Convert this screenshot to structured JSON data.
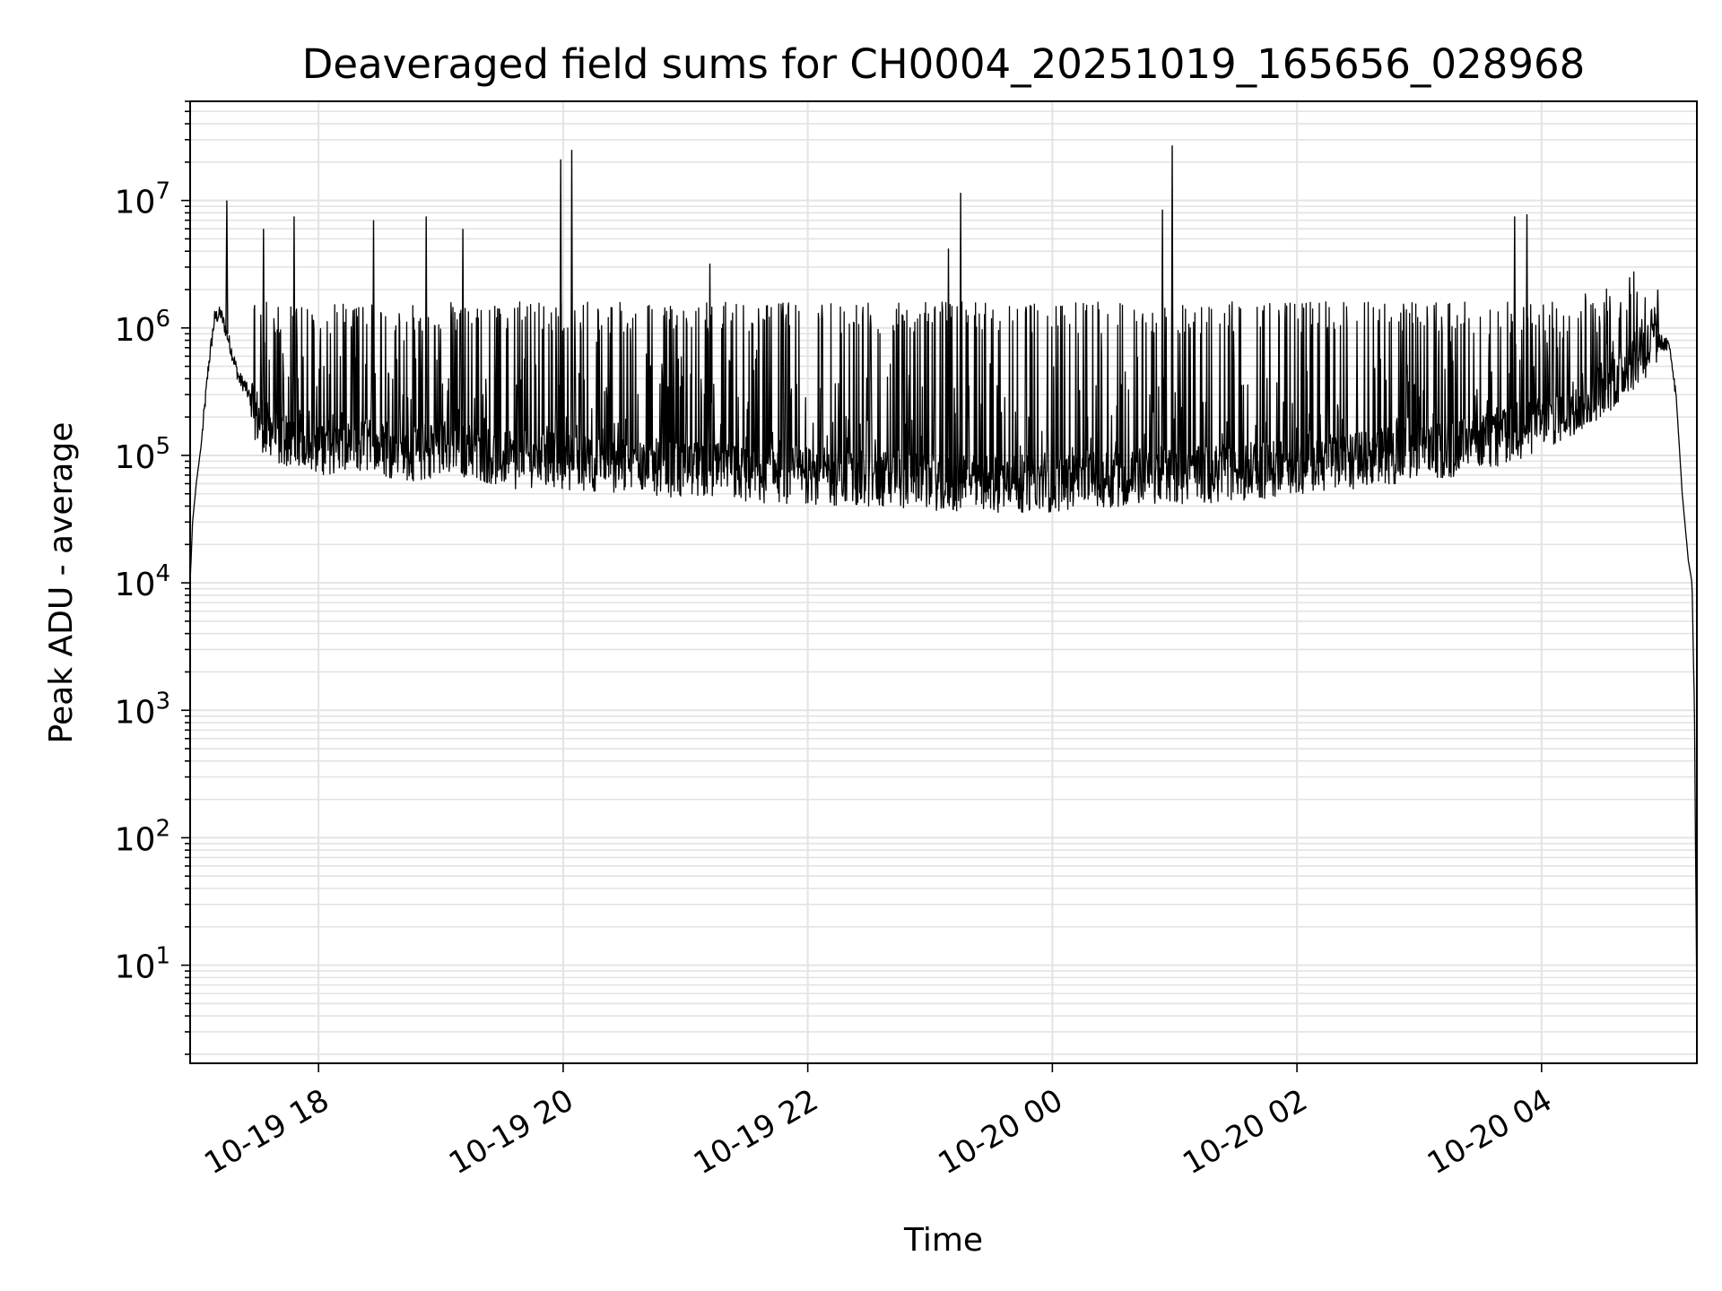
{
  "chart_data": {
    "type": "line",
    "title": "Deaveraged field sums for CH0004_20251019_165656_028968",
    "xlabel": "Time",
    "ylabel": "Peak ADU - average",
    "yscale": "log",
    "ylim": [
      1.7,
      60000000
    ],
    "xlim_hours": [
      -1.05,
      11.27
    ],
    "grid": true,
    "x_ticks": [
      {
        "label": "10-19 18",
        "hours": 0
      },
      {
        "label": "10-19 20",
        "hours": 2
      },
      {
        "label": "10-19 22",
        "hours": 4
      },
      {
        "label": "10-20 00",
        "hours": 6
      },
      {
        "label": "10-20 02",
        "hours": 8
      },
      {
        "label": "10-20 04",
        "hours": 10
      }
    ],
    "y_ticks": [
      {
        "base": "10",
        "exp": "1",
        "value": 10
      },
      {
        "base": "10",
        "exp": "2",
        "value": 100
      },
      {
        "base": "10",
        "exp": "3",
        "value": 1000
      },
      {
        "base": "10",
        "exp": "4",
        "value": 10000
      },
      {
        "base": "10",
        "exp": "5",
        "value": 100000
      },
      {
        "base": "10",
        "exp": "6",
        "value": 1000000
      },
      {
        "base": "10",
        "exp": "7",
        "value": 10000000
      }
    ],
    "series": [
      {
        "name": "Peak ADU - average",
        "color": "#000000",
        "x_hours": [
          -1.05,
          -1.03,
          -1.0,
          -0.96,
          -0.9,
          -0.85,
          -0.8,
          -0.75,
          -0.7,
          -0.65,
          -0.6,
          -0.5,
          -0.4,
          -0.3,
          -0.2,
          -0.1,
          0.0,
          0.2,
          0.4,
          0.6,
          0.8,
          1.0,
          1.2,
          1.4,
          1.6,
          1.8,
          2.0,
          2.4,
          2.8,
          3.2,
          3.6,
          4.0,
          4.4,
          4.8,
          5.2,
          5.6,
          6.0,
          6.4,
          6.8,
          7.2,
          7.6,
          8.0,
          8.4,
          8.8,
          9.2,
          9.6,
          10.0,
          10.3,
          10.6,
          10.8,
          10.95,
          11.05,
          11.1,
          11.15,
          11.2,
          11.23,
          11.25,
          11.27
        ],
        "values": [
          10000,
          30000,
          60000,
          120000,
          500000,
          1200000,
          1300000,
          900000,
          600000,
          400000,
          350000,
          200000,
          150000,
          130000,
          140000,
          130000,
          120000,
          110000,
          120000,
          110000,
          100000,
          120000,
          110000,
          100000,
          90000,
          95000,
          90000,
          85000,
          80000,
          75000,
          70000,
          70000,
          65000,
          65000,
          60000,
          60000,
          60000,
          65000,
          70000,
          70000,
          75000,
          80000,
          90000,
          100000,
          110000,
          130000,
          180000,
          250000,
          400000,
          600000,
          800000,
          700000,
          300000,
          50000,
          15000,
          10000,
          1000,
          4
        ],
        "spikes": [
          {
            "hours": -0.75,
            "value": 10000000
          },
          {
            "hours": -0.45,
            "value": 6000000
          },
          {
            "hours": -0.2,
            "value": 7500000
          },
          {
            "hours": 0.45,
            "value": 7000000
          },
          {
            "hours": 0.88,
            "value": 7500000
          },
          {
            "hours": 1.18,
            "value": 6000000
          },
          {
            "hours": 1.98,
            "value": 21000000
          },
          {
            "hours": 2.07,
            "value": 25000000
          },
          {
            "hours": 3.2,
            "value": 3200000
          },
          {
            "hours": 5.15,
            "value": 4200000
          },
          {
            "hours": 5.25,
            "value": 11500000
          },
          {
            "hours": 6.9,
            "value": 8500000
          },
          {
            "hours": 6.98,
            "value": 27000000
          },
          {
            "hours": 9.78,
            "value": 7500000
          },
          {
            "hours": 9.88,
            "value": 7800000
          },
          {
            "hours": 10.72,
            "value": 2500000
          },
          {
            "hours": 10.95,
            "value": 2000000
          }
        ]
      }
    ]
  }
}
